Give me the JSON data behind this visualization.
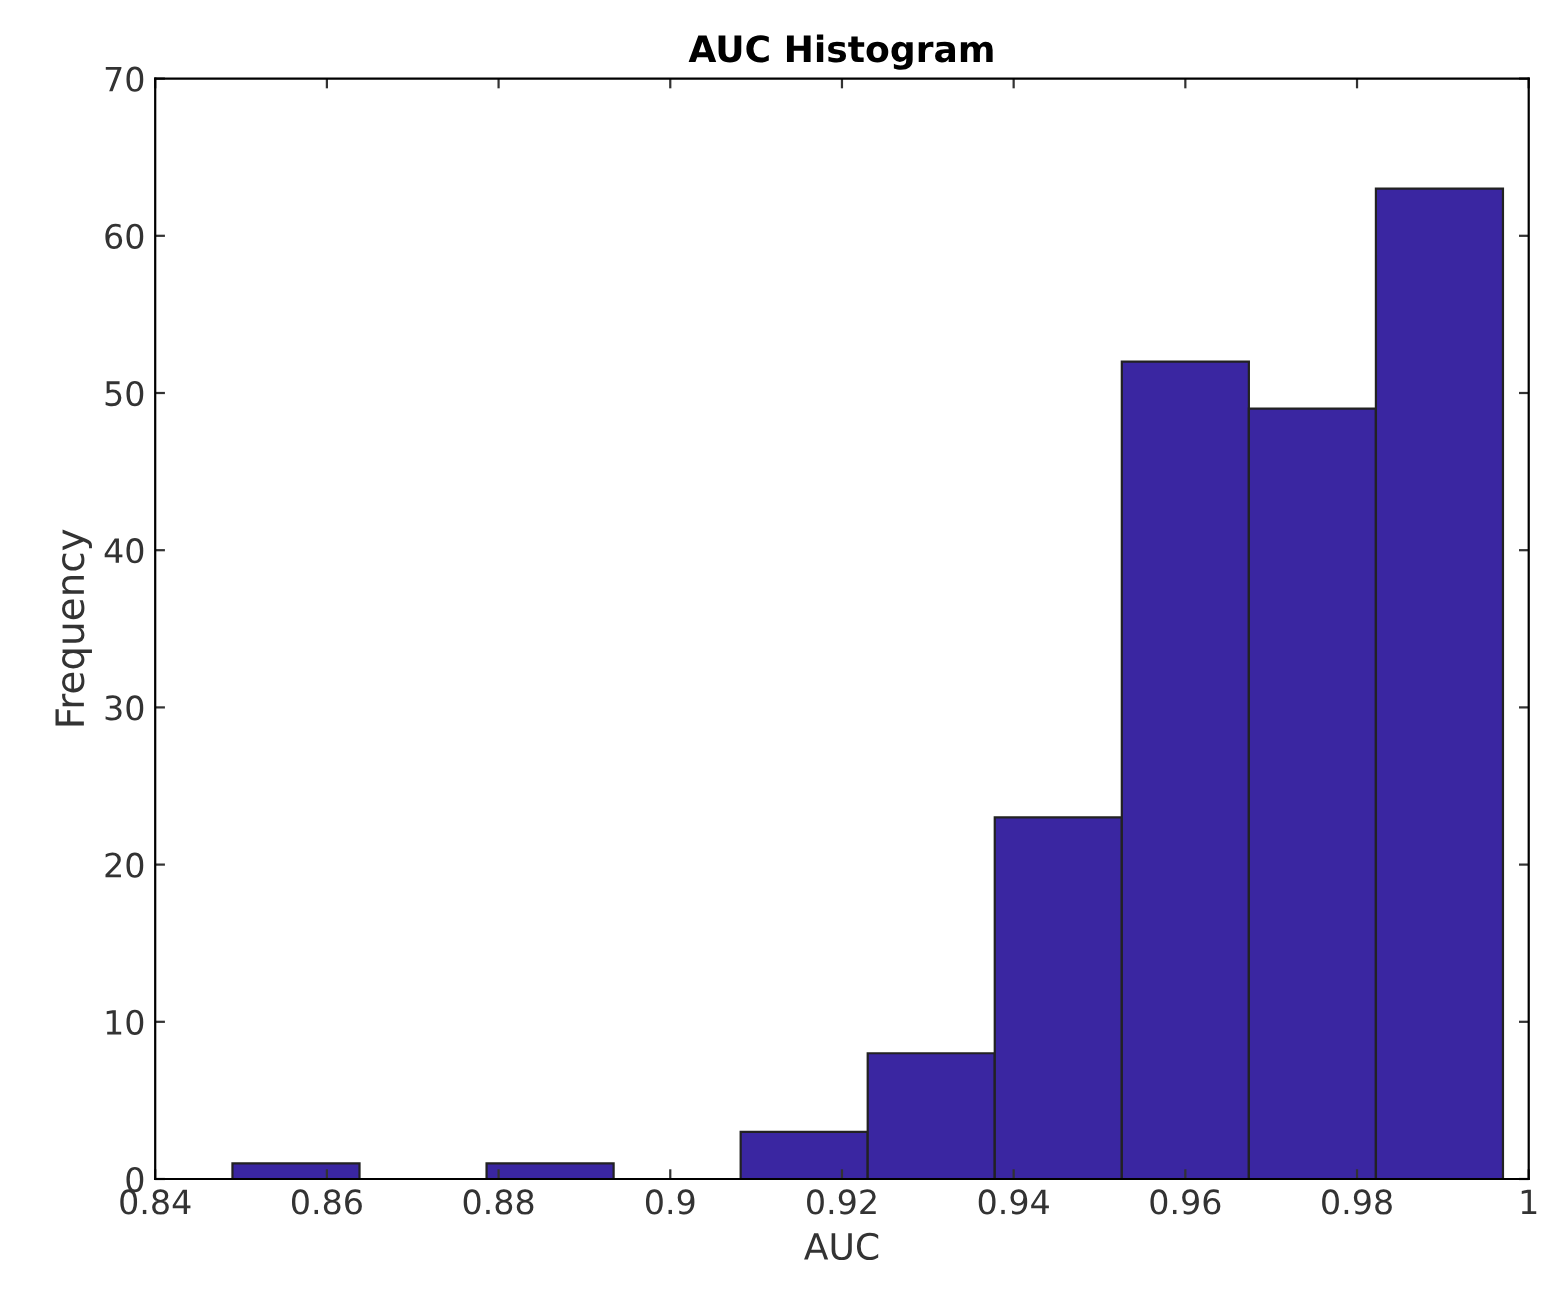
{
  "chart_data": {
    "type": "histogram",
    "title": "AUC Histogram",
    "xlabel": "AUC",
    "ylabel": "Frequency",
    "bins": [
      0.849,
      0.8638,
      0.8786,
      0.8934,
      0.9082,
      0.923,
      0.9378,
      0.9526,
      0.9674,
      0.9822,
      0.997
    ],
    "values": [
      1,
      0,
      1,
      0,
      3,
      8,
      23,
      52,
      49,
      63
    ],
    "color": "#3a26a1",
    "xlim": [
      0.84,
      1
    ],
    "xticks": [
      0.84,
      0.86,
      0.88,
      0.9,
      0.92,
      0.94,
      0.96,
      0.98,
      1
    ],
    "ylim": [
      0,
      70
    ],
    "yticks": [
      0,
      10,
      20,
      30,
      40,
      50,
      60,
      70
    ],
    "grid": false
  }
}
